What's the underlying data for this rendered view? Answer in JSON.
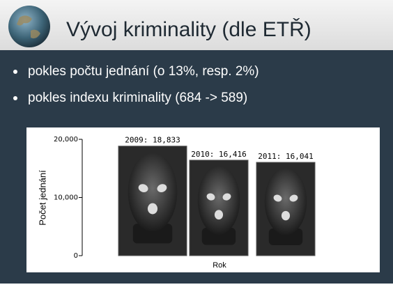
{
  "slide": {
    "title": "Vývoj kriminality (dle ETŘ)",
    "bullets": [
      "pokles počtu jednání (o 13%, resp. 2%)",
      "pokles indexu kriminality (684 -> 589)"
    ]
  },
  "chart_data": {
    "type": "bar",
    "values": [
      18833,
      16416,
      16041
    ],
    "value_labels": [
      "2009: 18,833",
      "2010: 16,416",
      "2011: 16,041"
    ],
    "color": "#2a2a2a",
    "ylabel": "Počet jednání",
    "xlabel": "Rok",
    "ylim": [
      0,
      20000
    ],
    "yticks": [
      0,
      {
        "value": 10000,
        "label": "10,000"
      },
      {
        "value": 20000,
        "label": "20,000"
      }
    ]
  }
}
